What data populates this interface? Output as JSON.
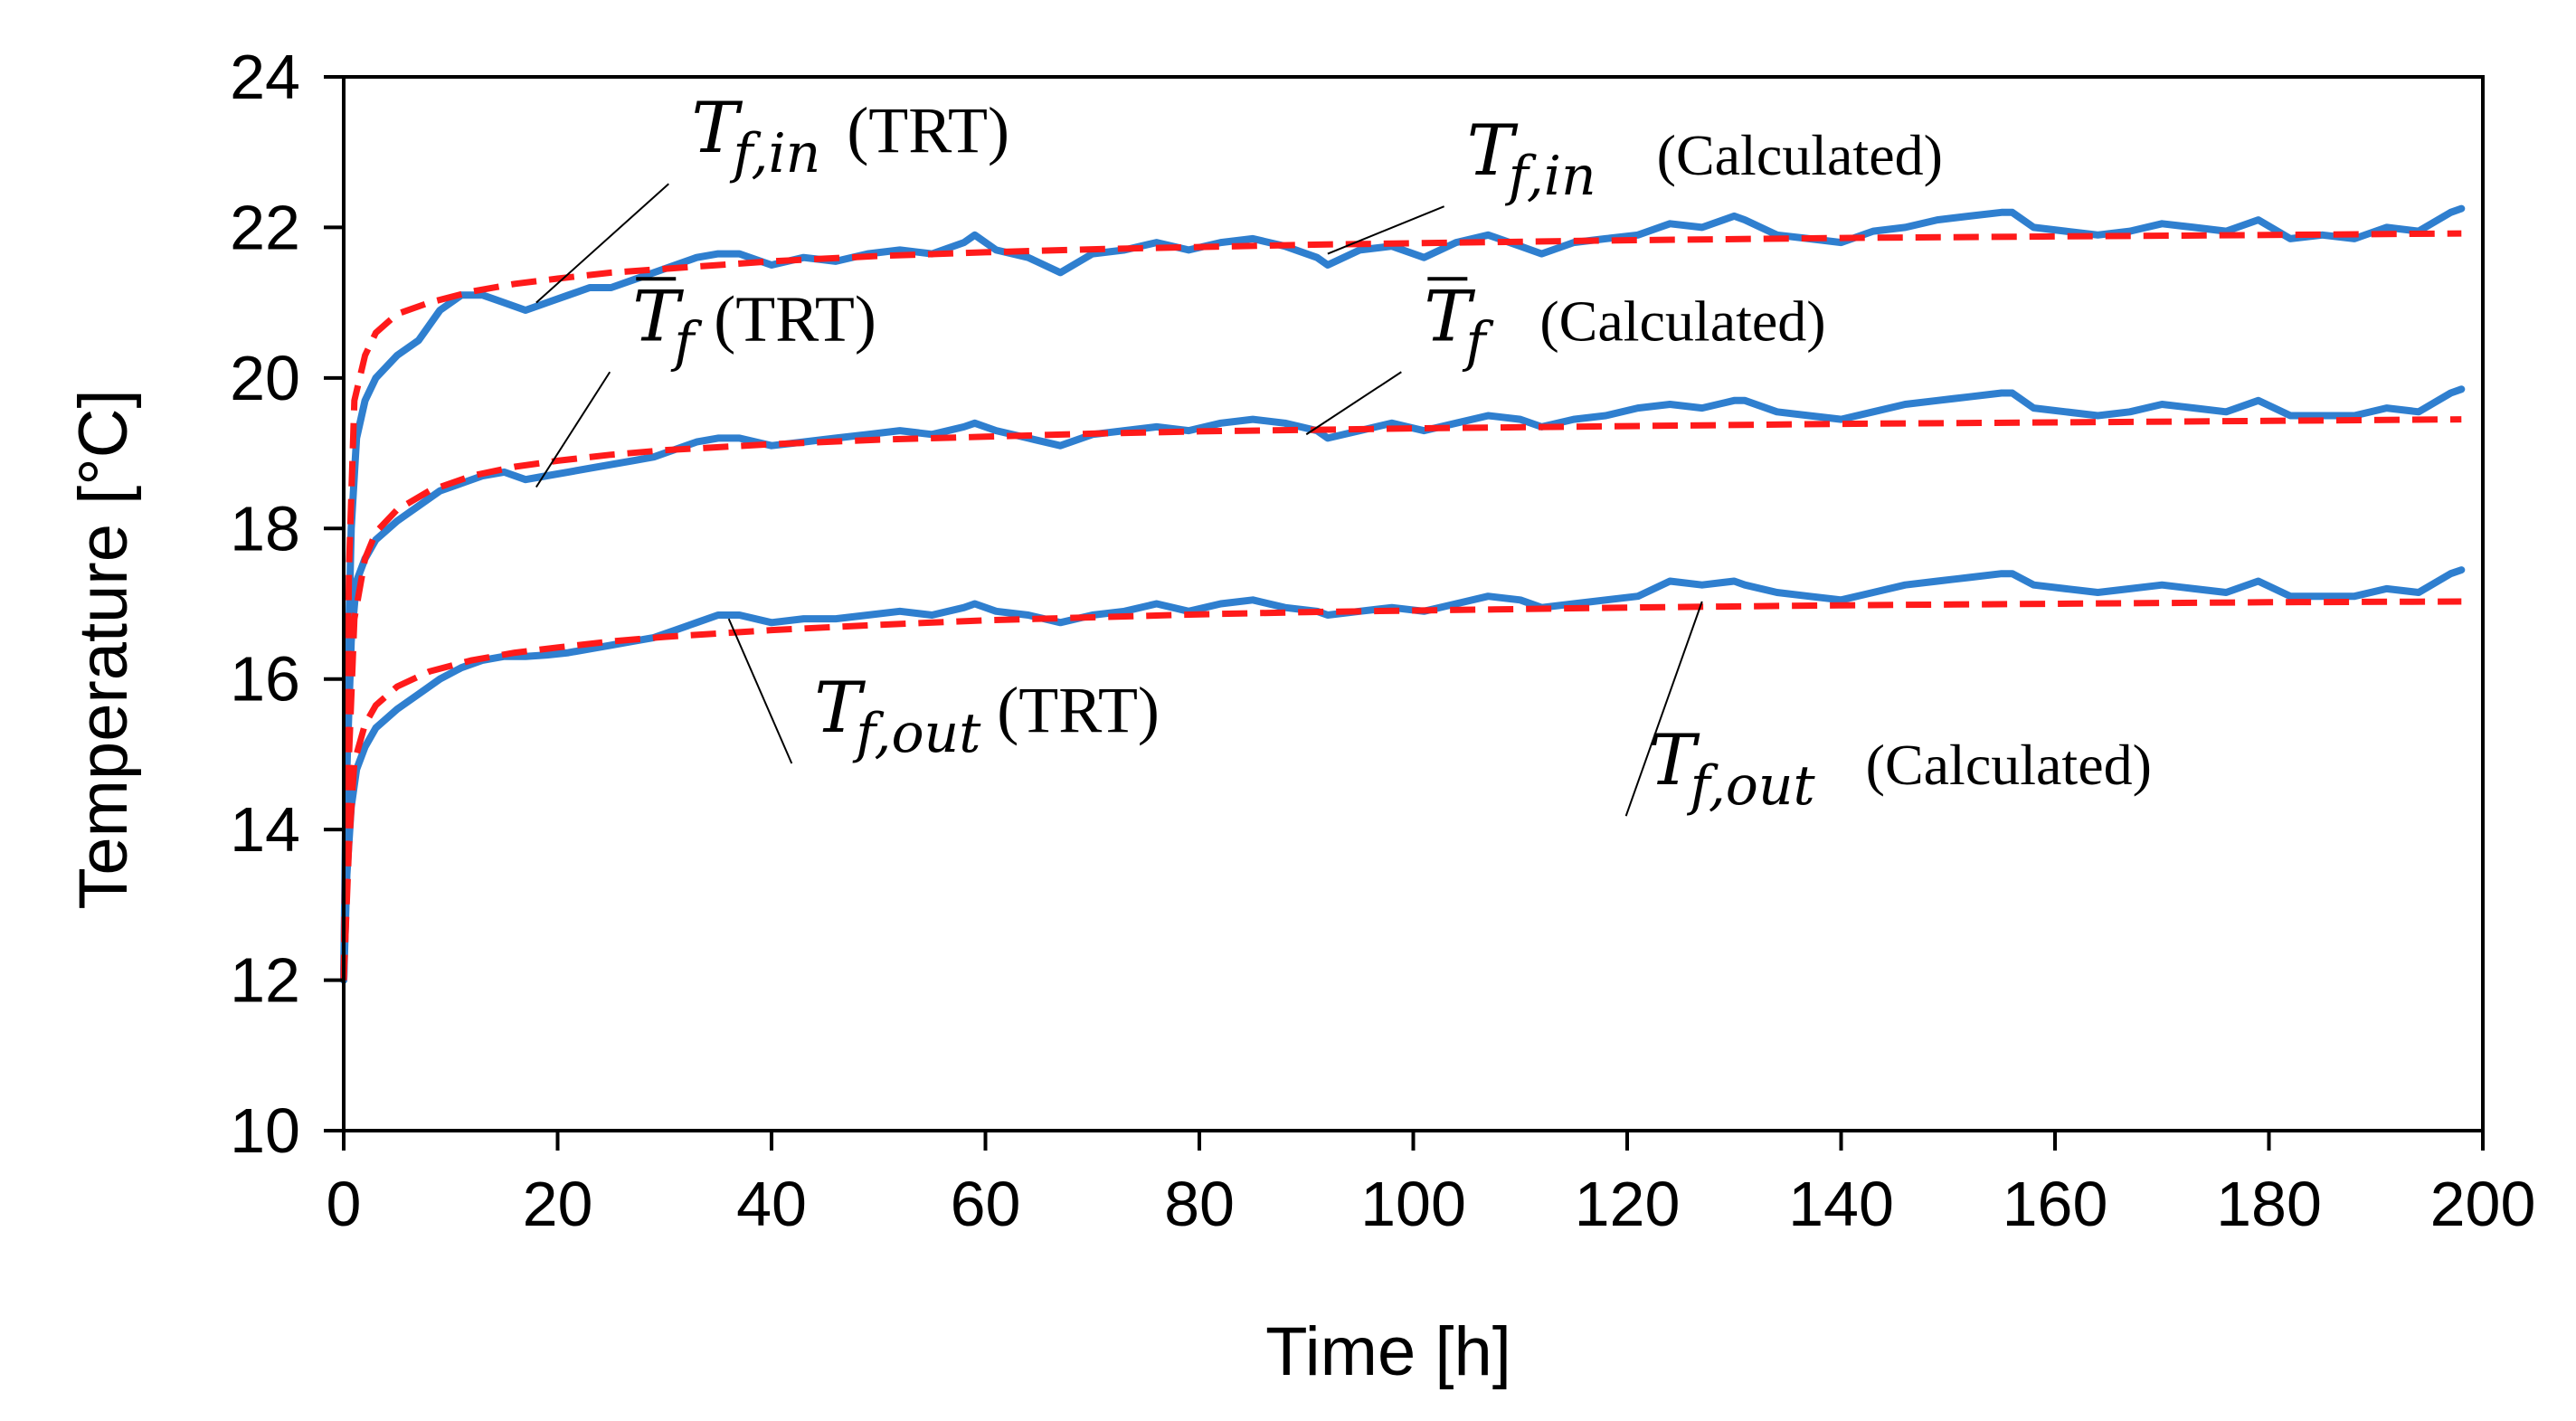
{
  "chart_data": {
    "type": "line",
    "title": "",
    "xlabel": "Time [h]",
    "ylabel": "Temperature [°C]",
    "xlim": [
      0,
      200
    ],
    "ylim": [
      10,
      24
    ],
    "x_ticks": [
      0,
      20,
      40,
      60,
      80,
      100,
      120,
      140,
      160,
      180,
      200
    ],
    "y_ticks": [
      10,
      12,
      14,
      16,
      18,
      20,
      22,
      24
    ],
    "grid": false,
    "legend": "none",
    "colors": {
      "measured": "#2f7fcf",
      "calculated": "#ff1a1a"
    },
    "series": [
      {
        "name": "T_f,in (TRT)",
        "style": "solid",
        "color": "#2f7fcf",
        "x": [
          0,
          0.3,
          0.7,
          1.2,
          2,
          3,
          5,
          7,
          9,
          11,
          13,
          15,
          17,
          19,
          21,
          23,
          25,
          27,
          29,
          31,
          33,
          35,
          37,
          40,
          43,
          46,
          49,
          52,
          55,
          58,
          59,
          61,
          64,
          67,
          70,
          73,
          76,
          79,
          82,
          85,
          88,
          91,
          92,
          95,
          98,
          101,
          104,
          107,
          110,
          112,
          115,
          118,
          121,
          124,
          127,
          130,
          131,
          134,
          137,
          140,
          143,
          146,
          149,
          152,
          155,
          156,
          158,
          161,
          164,
          167,
          170,
          173,
          176,
          179,
          182,
          185,
          188,
          191,
          194,
          197,
          198
        ],
        "y": [
          12.0,
          15.5,
          18.0,
          19.2,
          19.7,
          20.0,
          20.3,
          20.5,
          20.9,
          21.1,
          21.1,
          21.0,
          20.9,
          21.0,
          21.1,
          21.2,
          21.2,
          21.3,
          21.4,
          21.5,
          21.6,
          21.65,
          21.65,
          21.5,
          21.6,
          21.55,
          21.65,
          21.7,
          21.65,
          21.8,
          21.9,
          21.7,
          21.6,
          21.4,
          21.65,
          21.7,
          21.8,
          21.7,
          21.8,
          21.85,
          21.75,
          21.6,
          21.5,
          21.7,
          21.75,
          21.6,
          21.8,
          21.9,
          21.75,
          21.65,
          21.8,
          21.85,
          21.9,
          22.05,
          22.0,
          22.15,
          22.1,
          21.9,
          21.85,
          21.8,
          21.95,
          22.0,
          22.1,
          22.15,
          22.2,
          22.2,
          22.0,
          21.95,
          21.9,
          21.95,
          22.05,
          22.0,
          21.95,
          22.1,
          21.85,
          21.9,
          21.85,
          22.0,
          21.95,
          22.2,
          22.25
        ]
      },
      {
        "name": "T_f,in (Calculated)",
        "style": "dashed",
        "color": "#ff1a1a",
        "x": [
          0,
          0.5,
          1,
          2,
          3,
          5,
          8,
          12,
          16,
          20,
          25,
          30,
          40,
          50,
          60,
          70,
          80,
          90,
          100,
          120,
          140,
          160,
          180,
          198
        ],
        "y": [
          12.0,
          17.5,
          19.7,
          20.3,
          20.6,
          20.85,
          21.0,
          21.15,
          21.25,
          21.32,
          21.4,
          21.45,
          21.55,
          21.62,
          21.67,
          21.71,
          21.74,
          21.77,
          21.79,
          21.83,
          21.86,
          21.88,
          21.9,
          21.92
        ]
      },
      {
        "name": "T̄_f (TRT)",
        "style": "solid",
        "color": "#2f7fcf",
        "x": [
          0,
          0.3,
          0.7,
          1.2,
          2,
          3,
          5,
          7,
          9,
          11,
          13,
          15,
          17,
          19,
          21,
          23,
          25,
          27,
          29,
          31,
          33,
          35,
          37,
          40,
          43,
          46,
          49,
          52,
          55,
          58,
          59,
          61,
          64,
          67,
          70,
          73,
          76,
          79,
          82,
          85,
          88,
          91,
          92,
          95,
          98,
          101,
          104,
          107,
          110,
          112,
          115,
          118,
          121,
          124,
          127,
          130,
          131,
          134,
          137,
          140,
          143,
          146,
          149,
          152,
          155,
          156,
          158,
          161,
          164,
          167,
          170,
          173,
          176,
          179,
          182,
          185,
          188,
          191,
          194,
          197,
          198
        ],
        "y": [
          12.0,
          14.8,
          16.5,
          17.3,
          17.6,
          17.85,
          18.1,
          18.3,
          18.5,
          18.6,
          18.7,
          18.75,
          18.65,
          18.7,
          18.75,
          18.8,
          18.85,
          18.9,
          18.95,
          19.05,
          19.15,
          19.2,
          19.2,
          19.1,
          19.15,
          19.2,
          19.25,
          19.3,
          19.25,
          19.35,
          19.4,
          19.3,
          19.2,
          19.1,
          19.25,
          19.3,
          19.35,
          19.3,
          19.4,
          19.45,
          19.4,
          19.3,
          19.2,
          19.3,
          19.4,
          19.3,
          19.4,
          19.5,
          19.45,
          19.35,
          19.45,
          19.5,
          19.6,
          19.65,
          19.6,
          19.7,
          19.7,
          19.55,
          19.5,
          19.45,
          19.55,
          19.65,
          19.7,
          19.75,
          19.8,
          19.8,
          19.6,
          19.55,
          19.5,
          19.55,
          19.65,
          19.6,
          19.55,
          19.7,
          19.5,
          19.5,
          19.5,
          19.6,
          19.55,
          19.8,
          19.85
        ]
      },
      {
        "name": "T̄_f (Calculated)",
        "style": "dashed",
        "color": "#ff1a1a",
        "x": [
          0,
          0.5,
          1,
          2,
          3,
          5,
          8,
          12,
          16,
          20,
          25,
          30,
          40,
          50,
          60,
          70,
          80,
          90,
          100,
          120,
          140,
          160,
          180,
          198
        ],
        "y": [
          12.0,
          15.0,
          16.8,
          17.6,
          17.95,
          18.25,
          18.5,
          18.7,
          18.82,
          18.9,
          18.98,
          19.04,
          19.12,
          19.18,
          19.22,
          19.26,
          19.29,
          19.31,
          19.33,
          19.36,
          19.39,
          19.41,
          19.43,
          19.45
        ]
      },
      {
        "name": "T_f,out (TRT)",
        "style": "solid",
        "color": "#2f7fcf",
        "x": [
          0,
          0.3,
          0.7,
          1.2,
          2,
          3,
          5,
          7,
          9,
          11,
          13,
          15,
          17,
          19,
          21,
          23,
          25,
          27,
          29,
          31,
          33,
          35,
          37,
          40,
          43,
          46,
          49,
          52,
          55,
          58,
          59,
          61,
          64,
          67,
          70,
          73,
          76,
          79,
          82,
          85,
          88,
          91,
          92,
          95,
          98,
          101,
          104,
          107,
          110,
          112,
          115,
          118,
          121,
          124,
          127,
          130,
          131,
          134,
          137,
          140,
          143,
          146,
          149,
          152,
          155,
          156,
          158,
          161,
          164,
          167,
          170,
          173,
          176,
          179,
          182,
          185,
          188,
          191,
          194,
          197,
          198
        ],
        "y": [
          12.0,
          13.4,
          14.3,
          14.8,
          15.1,
          15.35,
          15.6,
          15.8,
          16.0,
          16.15,
          16.25,
          16.3,
          16.3,
          16.32,
          16.35,
          16.4,
          16.45,
          16.5,
          16.55,
          16.65,
          16.75,
          16.85,
          16.85,
          16.75,
          16.8,
          16.8,
          16.85,
          16.9,
          16.85,
          16.95,
          17.0,
          16.9,
          16.85,
          16.75,
          16.85,
          16.9,
          17.0,
          16.9,
          17.0,
          17.05,
          16.95,
          16.9,
          16.85,
          16.9,
          16.95,
          16.9,
          17.0,
          17.1,
          17.05,
          16.95,
          17.0,
          17.05,
          17.1,
          17.3,
          17.25,
          17.3,
          17.25,
          17.15,
          17.1,
          17.05,
          17.15,
          17.25,
          17.3,
          17.35,
          17.4,
          17.4,
          17.25,
          17.2,
          17.15,
          17.2,
          17.25,
          17.2,
          17.15,
          17.3,
          17.1,
          17.1,
          17.1,
          17.2,
          17.15,
          17.4,
          17.45
        ]
      },
      {
        "name": "T_f,out (Calculated)",
        "style": "dashed",
        "color": "#ff1a1a",
        "x": [
          0,
          0.5,
          1,
          2,
          3,
          5,
          8,
          12,
          16,
          20,
          25,
          30,
          40,
          50,
          60,
          70,
          80,
          90,
          100,
          120,
          140,
          160,
          180,
          198
        ],
        "y": [
          12.0,
          13.8,
          14.9,
          15.4,
          15.65,
          15.9,
          16.1,
          16.25,
          16.35,
          16.42,
          16.5,
          16.56,
          16.65,
          16.72,
          16.78,
          16.82,
          16.86,
          16.89,
          16.91,
          16.95,
          16.98,
          17.0,
          17.02,
          17.03
        ]
      }
    ],
    "annotations": [
      {
        "id": "tfin-trt",
        "symbol": "T",
        "subscript": "f,in",
        "bar": false,
        "tag": "(TRT)",
        "target_x": 18,
        "target_y": 21.0,
        "anchor_x": 32.5,
        "anchor_y": 23.0
      },
      {
        "id": "tfin-calc",
        "symbol": "T",
        "subscript": "f,in",
        "bar": false,
        "tag": "(Calculated)",
        "target_x": 92,
        "target_y": 21.65,
        "anchor_x": 105,
        "anchor_y": 22.7
      },
      {
        "id": "tf-trt",
        "symbol": "T",
        "subscript": "f",
        "bar": true,
        "tag": "(TRT)",
        "target_x": 18,
        "target_y": 18.55,
        "anchor_x": 27,
        "anchor_y": 20.5
      },
      {
        "id": "tf-calc",
        "symbol": "T",
        "subscript": "f",
        "bar": true,
        "tag": "(Calculated)",
        "target_x": 90,
        "target_y": 19.25,
        "anchor_x": 101,
        "anchor_y": 20.5
      },
      {
        "id": "tfout-trt",
        "symbol": "T",
        "subscript": "f,out",
        "bar": false,
        "tag": "(TRT)",
        "target_x": 36,
        "target_y": 16.8,
        "anchor_x": 44,
        "anchor_y": 15.3
      },
      {
        "id": "tfout-calc",
        "symbol": "T",
        "subscript": "f,out",
        "bar": false,
        "tag": "(Calculated)",
        "target_x": 127,
        "target_y": 17.03,
        "anchor_x": 122,
        "anchor_y": 14.6
      }
    ]
  }
}
